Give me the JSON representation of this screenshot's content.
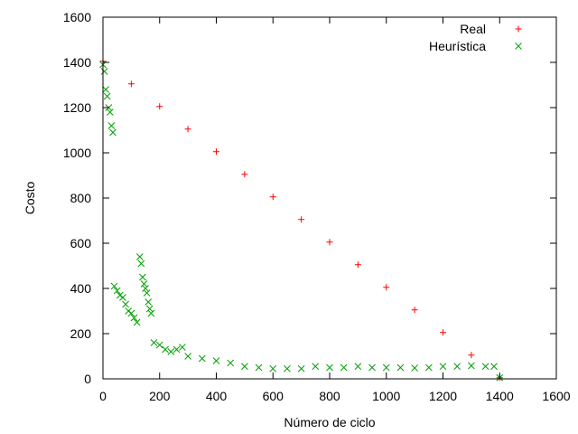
{
  "chart_data": {
    "type": "scatter",
    "xlabel": "Número de ciclo",
    "ylabel": "Costo",
    "xlim": [
      0,
      1600
    ],
    "ylim": [
      0,
      1600
    ],
    "xticks": [
      "0",
      "200",
      "400",
      "600",
      "800",
      "1000",
      "1200",
      "1400",
      "1600"
    ],
    "yticks": [
      "0",
      "200",
      "400",
      "600",
      "800",
      "1000",
      "1200",
      "1400",
      "1600"
    ],
    "grid": false,
    "legend_position": "top-right",
    "series": [
      {
        "name": "Real",
        "marker": "+",
        "color": "#ff0000",
        "x": [
          0,
          100,
          200,
          300,
          400,
          500,
          600,
          700,
          800,
          900,
          1000,
          1100,
          1200,
          1300,
          1400
        ],
        "y": [
          1405,
          1305,
          1205,
          1105,
          1005,
          905,
          805,
          705,
          605,
          505,
          405,
          305,
          205,
          105,
          5
        ]
      },
      {
        "name": "Heurística",
        "marker": "x",
        "color": "#00a000",
        "x": [
          0,
          5,
          10,
          15,
          20,
          25,
          30,
          35,
          40,
          50,
          60,
          70,
          80,
          90,
          100,
          110,
          120,
          130,
          135,
          140,
          145,
          150,
          155,
          160,
          165,
          170,
          180,
          200,
          220,
          240,
          260,
          280,
          300,
          350,
          400,
          450,
          500,
          550,
          600,
          650,
          700,
          750,
          800,
          850,
          900,
          950,
          1000,
          1050,
          1100,
          1150,
          1200,
          1250,
          1300,
          1350,
          1380,
          1400
        ],
        "y": [
          1390,
          1360,
          1280,
          1250,
          1200,
          1180,
          1120,
          1090,
          410,
          390,
          370,
          360,
          330,
          300,
          290,
          270,
          250,
          540,
          510,
          450,
          420,
          400,
          380,
          340,
          310,
          290,
          160,
          150,
          130,
          120,
          130,
          140,
          100,
          90,
          80,
          70,
          55,
          50,
          45,
          45,
          45,
          55,
          50,
          50,
          55,
          50,
          50,
          50,
          48,
          50,
          55,
          55,
          58,
          55,
          55,
          5
        ]
      }
    ]
  }
}
